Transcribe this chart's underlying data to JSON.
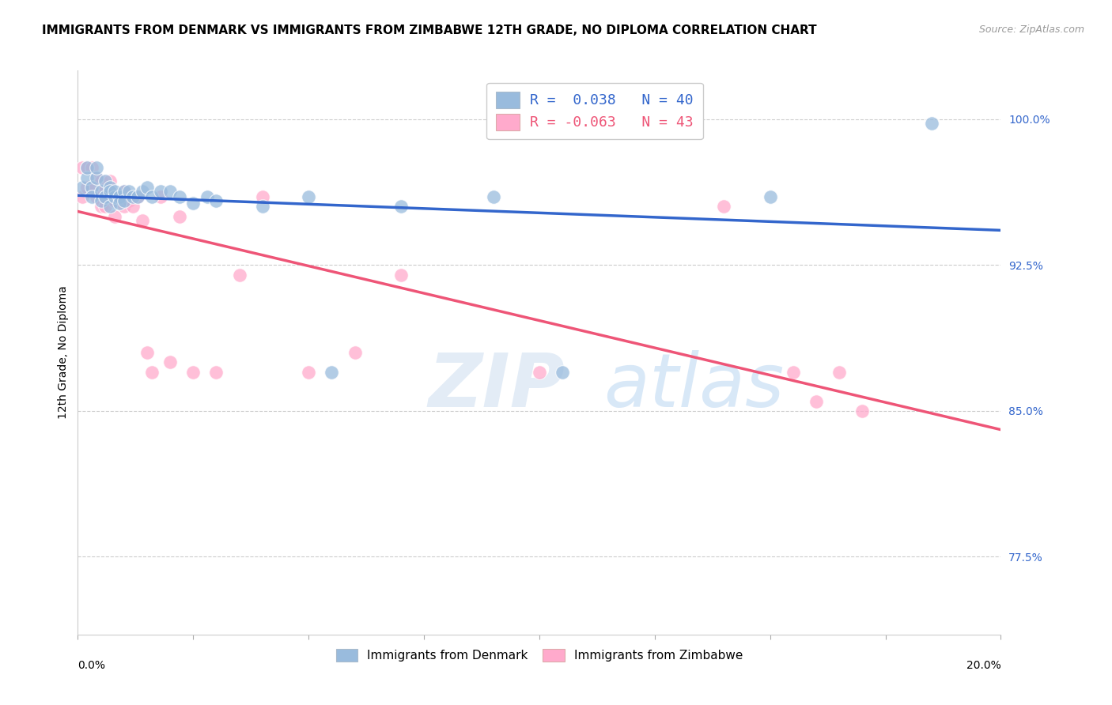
{
  "title": "IMMIGRANTS FROM DENMARK VS IMMIGRANTS FROM ZIMBABWE 12TH GRADE, NO DIPLOMA CORRELATION CHART",
  "source": "Source: ZipAtlas.com",
  "ylabel": "12th Grade, No Diploma",
  "yright_ticks": [
    1.0,
    0.925,
    0.85,
    0.775
  ],
  "yright_labels": [
    "100.0%",
    "92.5%",
    "85.0%",
    "77.5%"
  ],
  "xlim": [
    0.0,
    0.2
  ],
  "ylim": [
    0.735,
    1.025
  ],
  "denmark_R": 0.038,
  "denmark_N": 40,
  "zimbabwe_R": -0.063,
  "zimbabwe_N": 43,
  "denmark_color": "#99BBDD",
  "zimbabwe_color": "#FFAACC",
  "denmark_x": [
    0.001,
    0.002,
    0.002,
    0.003,
    0.003,
    0.004,
    0.004,
    0.005,
    0.005,
    0.006,
    0.006,
    0.007,
    0.007,
    0.007,
    0.008,
    0.008,
    0.009,
    0.009,
    0.01,
    0.01,
    0.011,
    0.012,
    0.013,
    0.014,
    0.015,
    0.016,
    0.018,
    0.02,
    0.022,
    0.025,
    0.028,
    0.03,
    0.04,
    0.05,
    0.055,
    0.07,
    0.09,
    0.105,
    0.15,
    0.185
  ],
  "denmark_y": [
    0.965,
    0.97,
    0.975,
    0.965,
    0.96,
    0.97,
    0.975,
    0.963,
    0.958,
    0.968,
    0.96,
    0.965,
    0.963,
    0.955,
    0.96,
    0.963,
    0.96,
    0.957,
    0.963,
    0.958,
    0.963,
    0.96,
    0.96,
    0.963,
    0.965,
    0.96,
    0.963,
    0.963,
    0.96,
    0.957,
    0.96,
    0.958,
    0.955,
    0.96,
    0.87,
    0.955,
    0.96,
    0.87,
    0.96,
    0.998
  ],
  "zimbabwe_x": [
    0.001,
    0.001,
    0.002,
    0.002,
    0.003,
    0.003,
    0.004,
    0.004,
    0.005,
    0.005,
    0.005,
    0.006,
    0.006,
    0.006,
    0.007,
    0.007,
    0.008,
    0.008,
    0.009,
    0.01,
    0.01,
    0.011,
    0.012,
    0.013,
    0.014,
    0.015,
    0.016,
    0.018,
    0.02,
    0.022,
    0.025,
    0.03,
    0.035,
    0.04,
    0.05,
    0.06,
    0.07,
    0.1,
    0.14,
    0.155,
    0.16,
    0.165,
    0.17
  ],
  "zimbabwe_y": [
    0.975,
    0.96,
    0.975,
    0.965,
    0.975,
    0.965,
    0.97,
    0.96,
    0.968,
    0.963,
    0.955,
    0.965,
    0.96,
    0.955,
    0.963,
    0.968,
    0.958,
    0.95,
    0.96,
    0.963,
    0.955,
    0.958,
    0.955,
    0.96,
    0.948,
    0.88,
    0.87,
    0.96,
    0.875,
    0.95,
    0.87,
    0.87,
    0.92,
    0.96,
    0.87,
    0.88,
    0.92,
    0.87,
    0.955,
    0.87,
    0.855,
    0.87,
    0.85
  ],
  "legend_denmark_label": "Immigrants from Denmark",
  "legend_zimbabwe_label": "Immigrants from Zimbabwe",
  "watermark_zip": "ZIP",
  "watermark_atlas": "atlas",
  "title_fontsize": 11,
  "label_fontsize": 10,
  "tick_fontsize": 10,
  "background_color": "#FFFFFF",
  "grid_color": "#CCCCCC",
  "trend_blue": "#3366CC",
  "trend_pink": "#EE5577"
}
